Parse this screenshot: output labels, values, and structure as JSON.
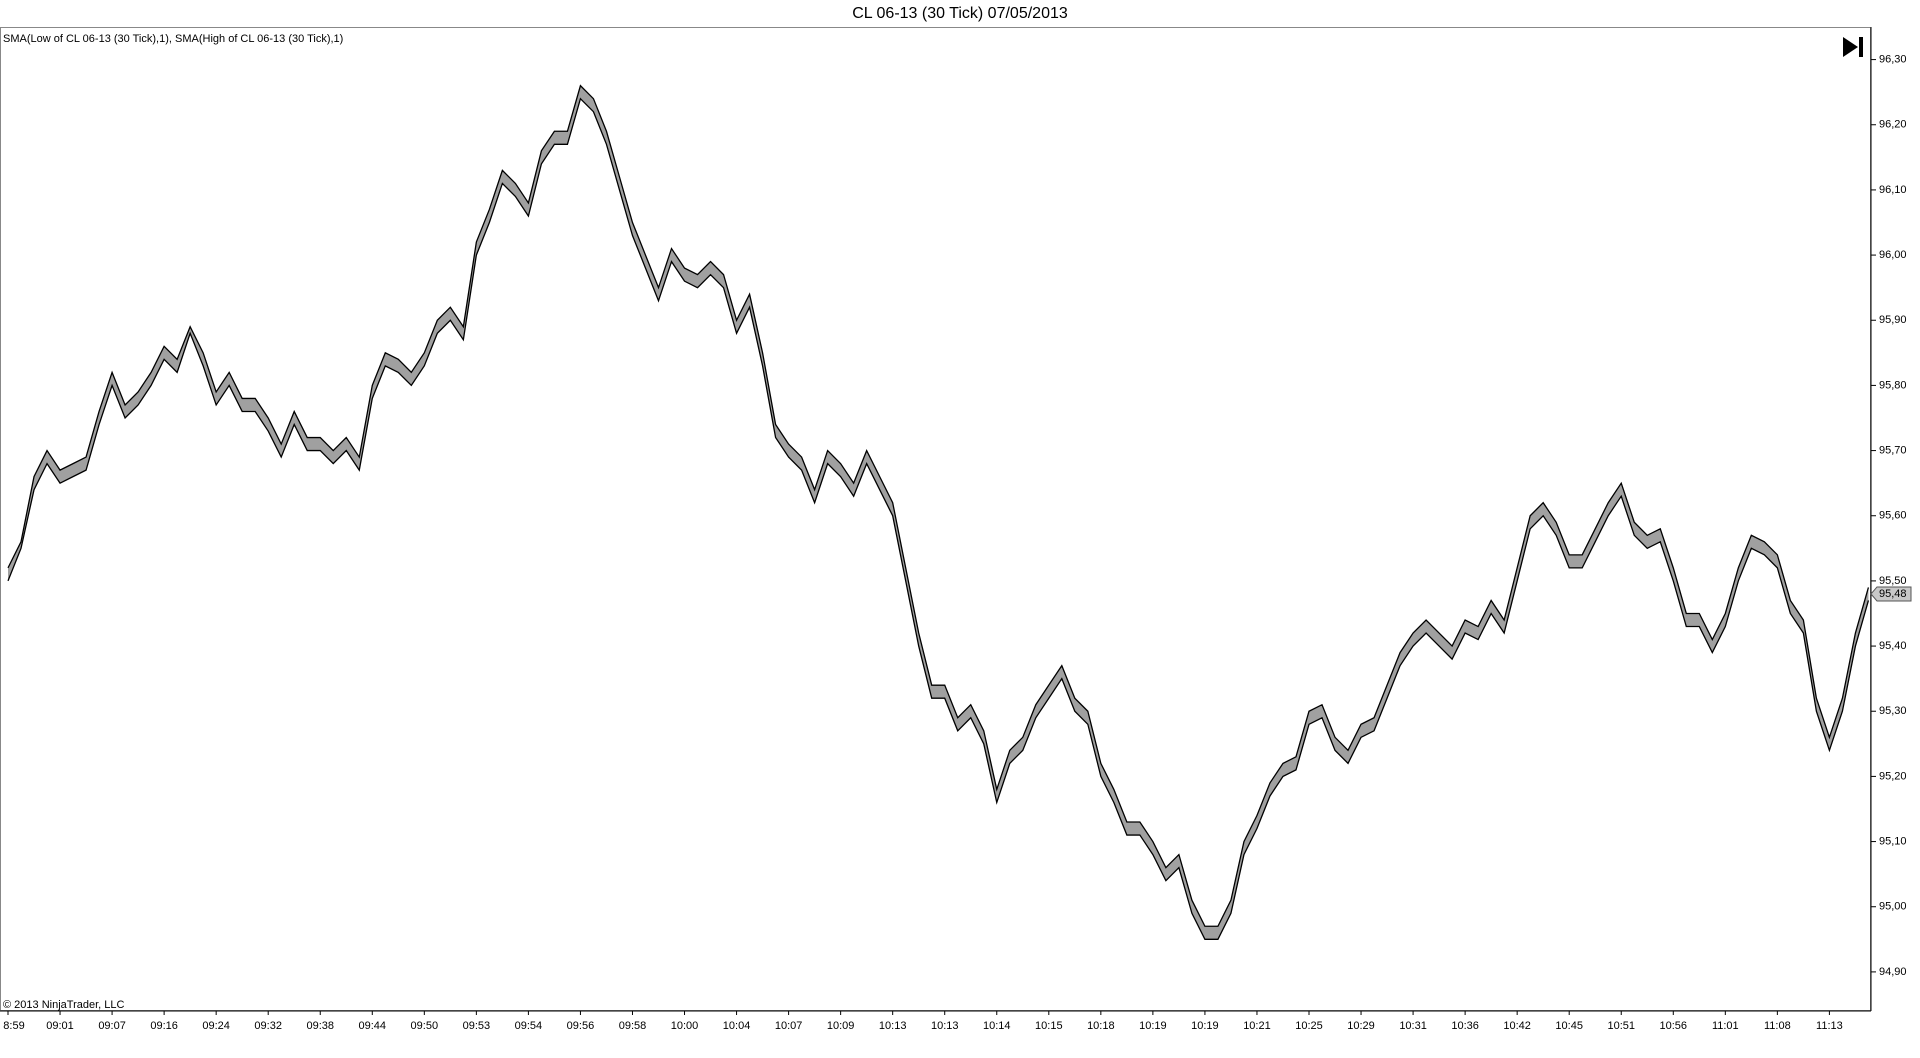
{
  "chart_data": {
    "type": "line",
    "title": "CL 06-13 (30 Tick)  07/05/2013",
    "copyright": "© 2013 NinjaTrader, LLC",
    "categories": [
      "8:59",
      null,
      null,
      null,
      "09:01",
      null,
      null,
      null,
      "09:07",
      null,
      null,
      null,
      "09:16",
      null,
      null,
      null,
      "09:24",
      null,
      null,
      null,
      "09:32",
      null,
      null,
      null,
      "09:38",
      null,
      null,
      null,
      "09:44",
      null,
      null,
      null,
      "09:50",
      null,
      null,
      null,
      "09:53",
      null,
      null,
      null,
      "09:54",
      null,
      null,
      null,
      "09:56",
      null,
      null,
      null,
      "09:58",
      null,
      null,
      null,
      "10:00",
      null,
      null,
      null,
      "10:04",
      null,
      null,
      null,
      "10:07",
      null,
      null,
      null,
      "10:09",
      null,
      null,
      null,
      "10:13",
      null,
      null,
      null,
      "10:13",
      null,
      null,
      null,
      "10:14",
      null,
      null,
      null,
      "10:15",
      null,
      null,
      null,
      "10:18",
      null,
      null,
      null,
      "10:19",
      null,
      null,
      null,
      "10:19",
      null,
      null,
      null,
      "10:21",
      null,
      null,
      null,
      "10:25",
      null,
      null,
      null,
      "10:29",
      null,
      null,
      null,
      "10:31",
      null,
      null,
      null,
      "10:36",
      null,
      null,
      null,
      "10:42",
      null,
      null,
      null,
      "10:45",
      null,
      null,
      null,
      "10:51",
      null,
      null,
      null,
      "10:56",
      null,
      null,
      null,
      "11:01",
      null,
      null,
      null,
      "11:08",
      null,
      null,
      null,
      "11:13",
      null,
      null,
      null
    ],
    "series": [
      {
        "name": "SMA(Low of CL 06-13 (30 Tick),1)",
        "color": "#000000",
        "values": [
          95.5,
          95.55,
          95.64,
          95.68,
          95.65,
          95.66,
          95.67,
          95.74,
          95.8,
          95.75,
          95.77,
          95.8,
          95.84,
          95.82,
          95.88,
          95.83,
          95.77,
          95.8,
          95.76,
          95.76,
          95.73,
          95.69,
          95.74,
          95.7,
          95.7,
          95.68,
          95.7,
          95.67,
          95.78,
          95.83,
          95.82,
          95.8,
          95.83,
          95.88,
          95.9,
          95.87,
          96.0,
          96.05,
          96.11,
          96.09,
          96.06,
          96.14,
          96.17,
          96.17,
          96.24,
          96.22,
          96.17,
          96.1,
          96.03,
          95.98,
          95.93,
          95.99,
          95.96,
          95.95,
          95.97,
          95.95,
          95.88,
          95.92,
          95.83,
          95.72,
          95.69,
          95.67,
          95.62,
          95.68,
          95.66,
          95.63,
          95.68,
          95.64,
          95.6,
          95.5,
          95.4,
          95.32,
          95.32,
          95.27,
          95.29,
          95.25,
          95.16,
          95.22,
          95.24,
          95.29,
          95.32,
          95.35,
          95.3,
          95.28,
          95.2,
          95.16,
          95.11,
          95.11,
          95.08,
          95.04,
          95.06,
          94.99,
          94.95,
          94.95,
          94.99,
          95.08,
          95.12,
          95.17,
          95.2,
          95.21,
          95.28,
          95.29,
          95.24,
          95.22,
          95.26,
          95.27,
          95.32,
          95.37,
          95.4,
          95.42,
          95.4,
          95.38,
          95.42,
          95.41,
          95.45,
          95.42,
          95.5,
          95.58,
          95.6,
          95.57,
          95.52,
          95.52,
          95.56,
          95.6,
          95.63,
          95.57,
          95.55,
          95.56,
          95.5,
          95.43,
          95.43,
          95.39,
          95.43,
          95.5,
          95.55,
          95.54,
          95.52,
          95.45,
          95.42,
          95.3,
          95.24,
          95.3,
          95.4,
          95.47
        ]
      },
      {
        "name": "SMA(High of CL 06-13 (30 Tick),1)",
        "color": "#000000",
        "values": [
          95.52,
          95.56,
          95.66,
          95.7,
          95.67,
          95.68,
          95.69,
          95.76,
          95.82,
          95.77,
          95.79,
          95.82,
          95.86,
          95.84,
          95.89,
          95.85,
          95.79,
          95.82,
          95.78,
          95.78,
          95.75,
          95.71,
          95.76,
          95.72,
          95.72,
          95.7,
          95.72,
          95.69,
          95.8,
          95.85,
          95.84,
          95.82,
          95.85,
          95.9,
          95.92,
          95.89,
          96.02,
          96.07,
          96.13,
          96.11,
          96.08,
          96.16,
          96.19,
          96.19,
          96.26,
          96.24,
          96.19,
          96.12,
          96.05,
          96.0,
          95.95,
          96.01,
          95.98,
          95.97,
          95.99,
          95.97,
          95.9,
          95.94,
          95.85,
          95.74,
          95.71,
          95.69,
          95.64,
          95.7,
          95.68,
          95.65,
          95.7,
          95.66,
          95.62,
          95.52,
          95.42,
          95.34,
          95.34,
          95.29,
          95.31,
          95.27,
          95.18,
          95.24,
          95.26,
          95.31,
          95.34,
          95.37,
          95.32,
          95.3,
          95.22,
          95.18,
          95.13,
          95.13,
          95.1,
          95.06,
          95.08,
          95.01,
          94.97,
          94.97,
          95.01,
          95.1,
          95.14,
          95.19,
          95.22,
          95.23,
          95.3,
          95.31,
          95.26,
          95.24,
          95.28,
          95.29,
          95.34,
          95.39,
          95.42,
          95.44,
          95.42,
          95.4,
          95.44,
          95.43,
          95.47,
          95.44,
          95.52,
          95.6,
          95.62,
          95.59,
          95.54,
          95.54,
          95.58,
          95.62,
          95.65,
          95.59,
          95.57,
          95.58,
          95.52,
          95.45,
          95.45,
          95.41,
          95.45,
          95.52,
          95.57,
          95.56,
          95.54,
          95.47,
          95.44,
          95.32,
          95.26,
          95.32,
          95.42,
          95.49
        ]
      }
    ],
    "band_color": "#a0a0a0",
    "ylim": [
      94.84,
      96.35
    ],
    "yticks": [
      {
        "value": 94.9,
        "label": "94,90"
      },
      {
        "value": 95.0,
        "label": "95,00"
      },
      {
        "value": 95.1,
        "label": "95,10"
      },
      {
        "value": 95.2,
        "label": "95,20"
      },
      {
        "value": 95.3,
        "label": "95,30"
      },
      {
        "value": 95.4,
        "label": "95,40"
      },
      {
        "value": 95.5,
        "label": "95,50"
      },
      {
        "value": 95.6,
        "label": "95,60"
      },
      {
        "value": 95.7,
        "label": "95,70"
      },
      {
        "value": 95.8,
        "label": "95,80"
      },
      {
        "value": 95.9,
        "label": "95,90"
      },
      {
        "value": 96.0,
        "label": "96,00"
      },
      {
        "value": 96.1,
        "label": "96,10"
      },
      {
        "value": 96.2,
        "label": "96,20"
      },
      {
        "value": 96.3,
        "label": "96,30"
      }
    ],
    "last_price": {
      "value": 95.48,
      "label": "95,48"
    },
    "grid": false
  }
}
